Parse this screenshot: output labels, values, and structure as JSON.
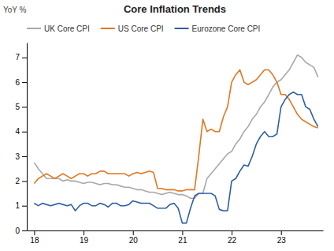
{
  "chart_data": {
    "type": "line",
    "title": "Core Inflation Trends",
    "ylabel": "YoY %",
    "x": [
      18.0,
      18.083,
      18.167,
      18.25,
      18.333,
      18.417,
      18.5,
      18.583,
      18.667,
      18.75,
      18.833,
      18.917,
      19.0,
      19.083,
      19.167,
      19.25,
      19.333,
      19.417,
      19.5,
      19.583,
      19.667,
      19.75,
      19.833,
      19.917,
      20.0,
      20.083,
      20.167,
      20.25,
      20.333,
      20.417,
      20.5,
      20.583,
      20.667,
      20.75,
      20.833,
      20.917,
      21.0,
      21.083,
      21.167,
      21.25,
      21.333,
      21.417,
      21.5,
      21.583,
      21.667,
      21.75,
      21.833,
      21.917,
      22.0,
      22.083,
      22.167,
      22.25,
      22.333,
      22.417,
      22.5,
      22.583,
      22.667,
      22.75,
      22.833,
      22.917,
      23.0,
      23.083,
      23.167,
      23.25,
      23.333,
      23.417,
      23.5,
      23.583,
      23.667,
      23.75
    ],
    "series": [
      {
        "name": "UK Core CPI",
        "color": "#a8a8a8",
        "values": [
          2.75,
          2.5,
          2.3,
          2.1,
          2.1,
          2.1,
          2.1,
          2.0,
          2.05,
          2.0,
          2.0,
          1.95,
          1.9,
          1.95,
          1.95,
          1.9,
          1.85,
          1.9,
          1.9,
          1.85,
          1.85,
          1.8,
          1.75,
          1.75,
          1.7,
          1.65,
          1.65,
          1.6,
          1.55,
          1.55,
          1.5,
          1.45,
          1.5,
          1.55,
          1.5,
          1.45,
          1.45,
          1.4,
          1.3,
          1.3,
          1.5,
          1.5,
          2.1,
          2.3,
          2.5,
          2.7,
          2.9,
          3.1,
          3.2,
          3.5,
          3.7,
          4.0,
          4.2,
          4.5,
          4.7,
          5.0,
          5.2,
          5.5,
          5.8,
          6.0,
          6.1,
          6.3,
          6.5,
          6.8,
          7.1,
          7.0,
          6.8,
          6.7,
          6.6,
          6.2
        ]
      },
      {
        "name": "US Core CPI",
        "color": "#e07820",
        "values": [
          1.9,
          2.1,
          2.2,
          2.3,
          2.2,
          2.1,
          2.2,
          2.3,
          2.2,
          2.1,
          2.2,
          2.3,
          2.3,
          2.2,
          2.3,
          2.3,
          2.4,
          2.4,
          2.3,
          2.3,
          2.3,
          2.3,
          2.3,
          2.2,
          2.3,
          2.35,
          2.3,
          2.35,
          2.4,
          2.35,
          1.7,
          1.7,
          1.65,
          1.65,
          1.65,
          1.6,
          1.6,
          1.65,
          1.65,
          1.65,
          3.0,
          4.5,
          4.0,
          4.1,
          4.0,
          4.0,
          4.6,
          5.0,
          6.0,
          6.3,
          6.5,
          6.0,
          5.9,
          6.0,
          6.1,
          6.3,
          6.5,
          6.5,
          6.3,
          6.0,
          5.5,
          5.5,
          5.3,
          5.0,
          4.7,
          4.5,
          4.4,
          4.3,
          4.2,
          4.15
        ]
      },
      {
        "name": "Eurozone Core CPI",
        "color": "#2e5fa3",
        "values": [
          1.1,
          1.0,
          1.1,
          1.05,
          1.0,
          1.05,
          1.1,
          1.05,
          1.0,
          1.05,
          0.8,
          1.0,
          1.1,
          1.1,
          1.0,
          1.0,
          1.1,
          1.05,
          0.95,
          1.1,
          1.1,
          1.0,
          1.0,
          1.05,
          1.2,
          1.15,
          1.1,
          1.1,
          1.1,
          1.0,
          0.9,
          0.9,
          0.9,
          1.05,
          1.1,
          0.9,
          0.3,
          0.3,
          0.9,
          1.4,
          1.5,
          1.5,
          1.5,
          1.5,
          1.4,
          0.85,
          0.8,
          0.8,
          2.0,
          2.1,
          2.4,
          2.65,
          2.6,
          3.0,
          3.5,
          3.8,
          4.0,
          3.8,
          3.8,
          3.9,
          5.0,
          5.3,
          5.5,
          5.6,
          5.5,
          5.5,
          5.0,
          4.9,
          4.5,
          4.2
        ]
      }
    ],
    "xlim": [
      17.85,
      23.85
    ],
    "ylim": [
      0,
      7.6
    ],
    "xticks": [
      18,
      19,
      20,
      21,
      22,
      23
    ],
    "yticks": [
      0,
      1,
      2,
      3,
      4,
      5,
      6,
      7
    ],
    "grid": false,
    "legend": "top-left"
  }
}
